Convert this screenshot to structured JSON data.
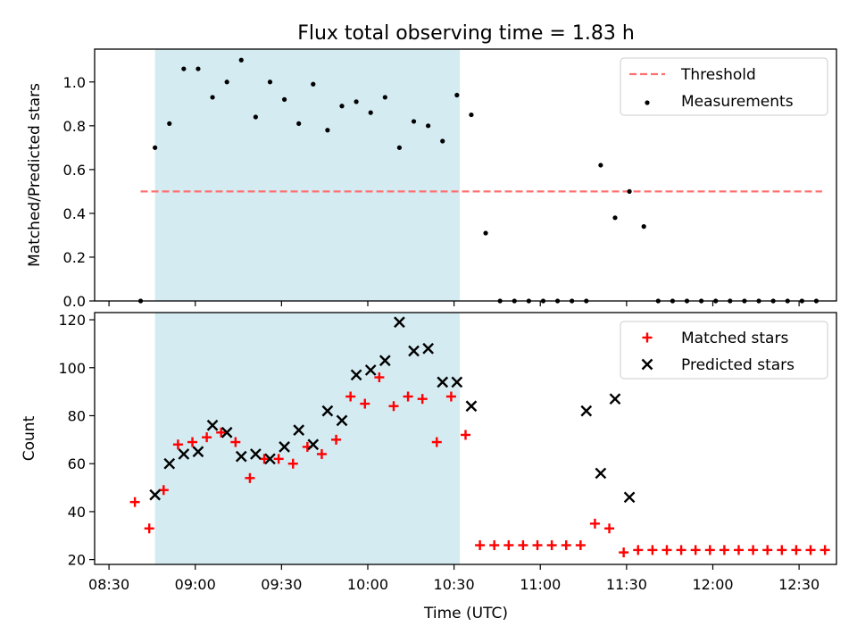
{
  "figure": {
    "title": "Flux total observing time = 1.83 h",
    "xlabel": "Time (UTC)"
  },
  "chart_data": [
    {
      "type": "scatter",
      "title": "Flux total observing time = 1.83 h",
      "ylabel": "Matched/Predicted stars",
      "xlim": [
        "08:25",
        "12:43"
      ],
      "ylim": [
        0,
        1.15
      ],
      "yticks": [
        0.0,
        0.2,
        0.4,
        0.6,
        0.8,
        1.0
      ],
      "ytick_labels": [
        "0.0",
        "0.2",
        "0.4",
        "0.6",
        "0.8",
        "1.0"
      ],
      "legend": "top-right",
      "shaded_region": {
        "x_start": "08:46",
        "x_end": "10:32",
        "color": "#add8e6"
      },
      "threshold": {
        "name": "Threshold",
        "value": 0.5,
        "x_start": "08:41",
        "x_end": "12:38",
        "color": "#ff7070"
      },
      "series": [
        {
          "name": "Measurements",
          "marker": "dot",
          "color": "#000000",
          "x": [
            "08:41",
            "08:46",
            "08:51",
            "08:56",
            "09:01",
            "09:06",
            "09:11",
            "09:16",
            "09:21",
            "09:26",
            "09:31",
            "09:36",
            "09:41",
            "09:46",
            "09:51",
            "09:56",
            "10:01",
            "10:06",
            "10:11",
            "10:16",
            "10:21",
            "10:26",
            "10:31",
            "10:36",
            "10:41",
            "10:46",
            "10:51",
            "10:56",
            "11:01",
            "11:06",
            "11:11",
            "11:16",
            "11:21",
            "11:26",
            "11:31",
            "11:36",
            "11:41",
            "11:46",
            "11:51",
            "11:56",
            "12:01",
            "12:06",
            "12:11",
            "12:16",
            "12:21",
            "12:26",
            "12:31",
            "12:36"
          ],
          "y": [
            0.0,
            0.7,
            0.81,
            1.06,
            1.06,
            0.93,
            1.0,
            1.1,
            0.84,
            1.0,
            0.92,
            0.81,
            0.99,
            0.78,
            0.89,
            0.91,
            0.86,
            0.93,
            0.7,
            0.82,
            0.8,
            0.73,
            0.94,
            0.85,
            0.31,
            0.0,
            0.0,
            0.0,
            0.0,
            0.0,
            0.0,
            0.0,
            0.62,
            0.38,
            0.5,
            0.34,
            0.0,
            0.0,
            0.0,
            0.0,
            0.0,
            0.0,
            0.0,
            0.0,
            0.0,
            0.0,
            0.0,
            0.0
          ]
        }
      ]
    },
    {
      "type": "scatter",
      "ylabel": "Count",
      "xlabel": "Time (UTC)",
      "xlim": [
        "08:25",
        "12:43"
      ],
      "ylim": [
        18,
        123
      ],
      "yticks": [
        20,
        40,
        60,
        80,
        100,
        120
      ],
      "ytick_labels": [
        "20",
        "40",
        "60",
        "80",
        "100",
        "120"
      ],
      "xticks": [
        "08:30",
        "09:00",
        "09:30",
        "10:00",
        "10:30",
        "11:00",
        "11:30",
        "12:00",
        "12:30"
      ],
      "legend": "top-right",
      "shaded_region": {
        "x_start": "08:46",
        "x_end": "10:32",
        "color": "#add8e6"
      },
      "series": [
        {
          "name": "Matched stars",
          "marker": "plus",
          "color": "#ff0000",
          "x": [
            "08:39",
            "08:44",
            "08:49",
            "08:54",
            "08:59",
            "09:04",
            "09:09",
            "09:14",
            "09:19",
            "09:24",
            "09:29",
            "09:34",
            "09:39",
            "09:44",
            "09:49",
            "09:54",
            "09:59",
            "10:04",
            "10:09",
            "10:14",
            "10:19",
            "10:24",
            "10:29",
            "10:34",
            "10:39",
            "10:44",
            "10:49",
            "10:54",
            "10:59",
            "11:04",
            "11:09",
            "11:14",
            "11:19",
            "11:24",
            "11:29",
            "11:34",
            "11:39",
            "11:44",
            "11:49",
            "11:54",
            "11:59",
            "12:04",
            "12:09",
            "12:14",
            "12:19",
            "12:24",
            "12:29",
            "12:34",
            "12:39"
          ],
          "y": [
            44,
            33,
            49,
            68,
            69,
            71,
            73,
            69,
            54,
            62,
            62,
            60,
            67,
            64,
            70,
            88,
            85,
            96,
            84,
            88,
            87,
            69,
            88,
            72,
            26,
            26,
            26,
            26,
            26,
            26,
            26,
            26,
            35,
            33,
            23,
            24,
            24,
            24,
            24,
            24,
            24,
            24,
            24,
            24,
            24,
            24,
            24,
            24,
            24
          ]
        },
        {
          "name": "Predicted stars",
          "marker": "x",
          "color": "#000000",
          "x": [
            "08:46",
            "08:51",
            "08:56",
            "09:01",
            "09:06",
            "09:11",
            "09:16",
            "09:21",
            "09:26",
            "09:31",
            "09:36",
            "09:41",
            "09:46",
            "09:51",
            "09:56",
            "10:01",
            "10:06",
            "10:11",
            "10:16",
            "10:21",
            "10:26",
            "10:31",
            "10:36",
            "11:16",
            "11:21",
            "11:26",
            "11:31"
          ],
          "y": [
            47,
            60,
            64,
            65,
            76,
            73,
            63,
            64,
            62,
            67,
            74,
            68,
            82,
            78,
            97,
            99,
            103,
            119,
            107,
            108,
            94,
            94,
            84,
            82,
            56,
            87,
            46
          ]
        }
      ]
    }
  ]
}
